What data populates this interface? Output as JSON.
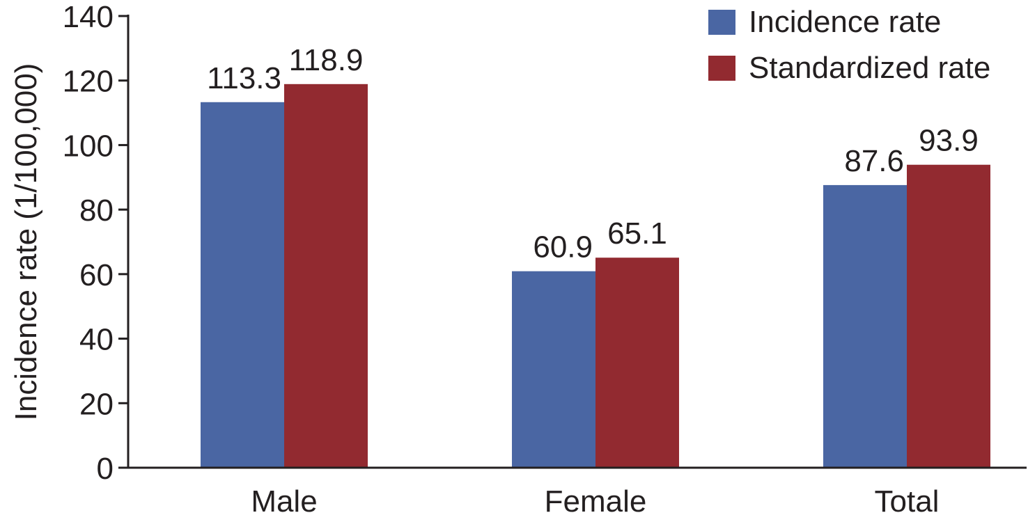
{
  "chart_data": {
    "type": "bar",
    "title": "",
    "xlabel": "",
    "ylabel": "Incidence rate (1/100,000)",
    "ylim": [
      0,
      140
    ],
    "yticks": [
      0,
      20,
      40,
      60,
      80,
      100,
      120,
      140
    ],
    "categories": [
      "Male",
      "Female",
      "Total"
    ],
    "series": [
      {
        "name": "Incidence rate",
        "color": "#4a66a3",
        "values": [
          113.3,
          60.9,
          87.6
        ],
        "labels": [
          "113.3",
          "60.9",
          "87.6"
        ]
      },
      {
        "name": "Standardized rate",
        "color": "#922a30",
        "values": [
          118.9,
          65.1,
          93.9
        ],
        "labels": [
          "118.9",
          "65.1",
          "93.9"
        ]
      }
    ],
    "grid": false,
    "legend_position": "top-right"
  }
}
